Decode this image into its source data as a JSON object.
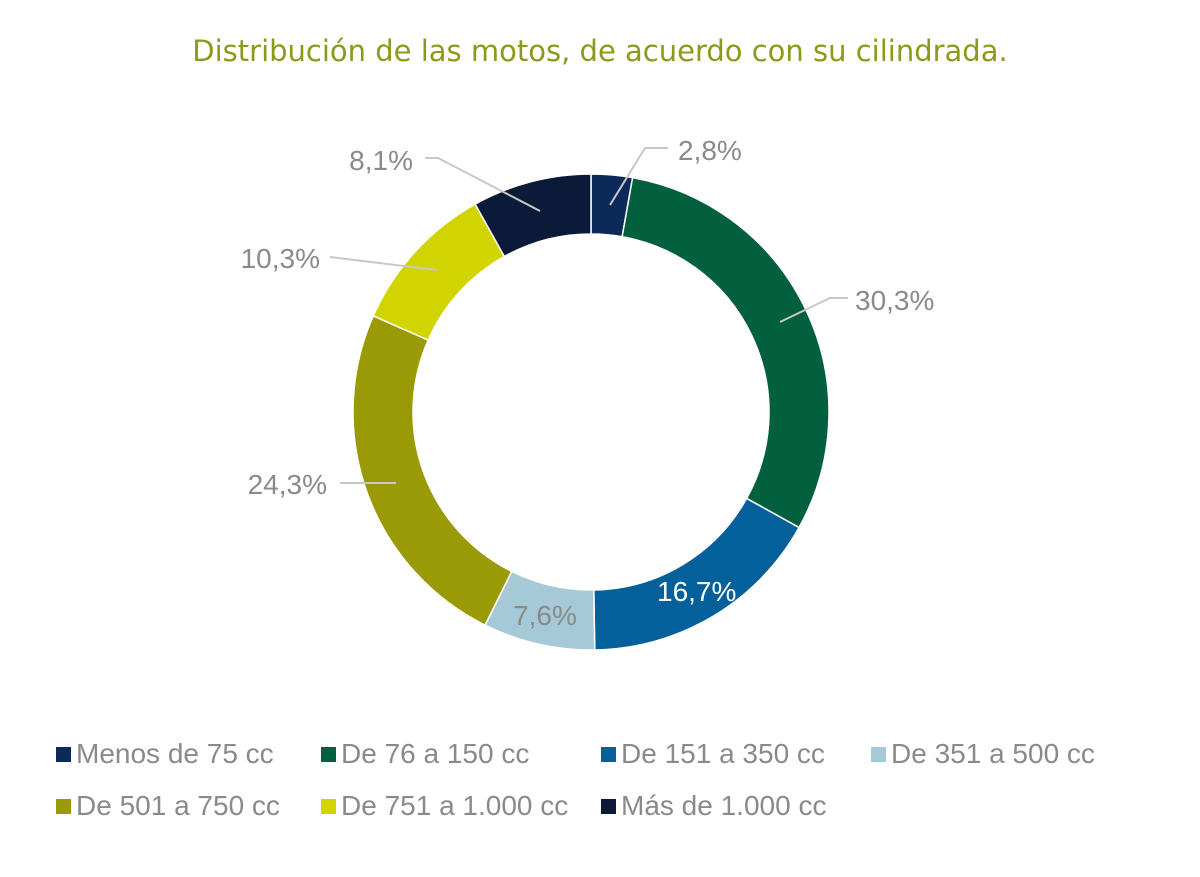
{
  "chart_data": {
    "type": "pie",
    "variant": "donut",
    "title": "Distribución de las motos, de acuerdo con su cilindrada.",
    "categories": [
      "Menos de 75 cc",
      "De 76 a 150 cc",
      "De 151 a 350 cc",
      "De 351 a 500 cc",
      "De 501 a 750 cc",
      "De 751 a 1.000 cc",
      "Más de 1.000 cc"
    ],
    "values": [
      2.8,
      30.3,
      16.7,
      7.6,
      24.3,
      10.3,
      8.1
    ],
    "labels": [
      "2,8%",
      "30,3%",
      "16,7%",
      "7,6%",
      "24,3%",
      "10,3%",
      "8,1%"
    ],
    "colors": [
      "#0b2a5a",
      "#03603f",
      "#04609a",
      "#a5c9d6",
      "#999a06",
      "#d2d400",
      "#0a1a38"
    ],
    "label_colors": [
      "#8a8a8a",
      "#8a8a8a",
      "#ffffff",
      "#8a8a8a",
      "#8a8a8a",
      "#8a8a8a",
      "#8a8a8a"
    ],
    "legend_position": "bottom"
  }
}
